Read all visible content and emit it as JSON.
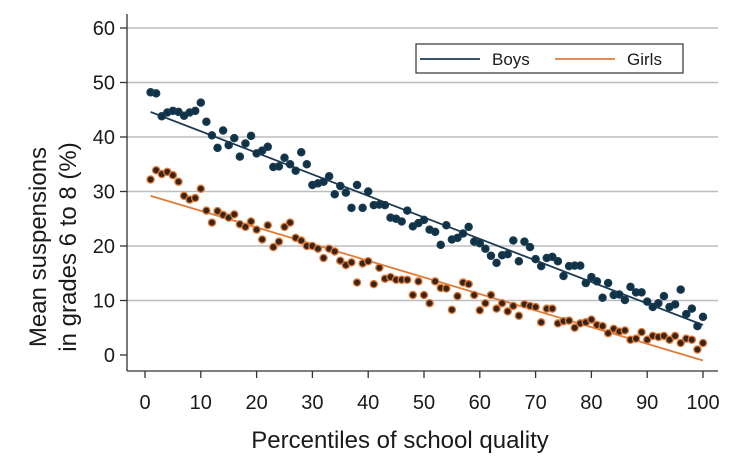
{
  "chart_data": {
    "type": "scatter",
    "xlabel": "Percentiles of school quality",
    "ylabel_lines": [
      "Mean suspensions",
      "in grades 6 to 8 (%)"
    ],
    "xlim": [
      0,
      100
    ],
    "ylim": [
      -2.5,
      62
    ],
    "xticks": [
      0,
      10,
      20,
      30,
      40,
      50,
      60,
      70,
      80,
      90,
      100
    ],
    "yticks": [
      0,
      10,
      20,
      30,
      40,
      50,
      60
    ],
    "grid": "horizontal",
    "legend_position": "top-right",
    "series": [
      {
        "name": "Boys",
        "color": "#1b3a52",
        "fill": "#0f3346",
        "fit": {
          "intercept": 45.0,
          "slope": -0.395
        },
        "points": [
          [
            1,
            48.2
          ],
          [
            2,
            48.0
          ],
          [
            3,
            43.8
          ],
          [
            4,
            44.5
          ],
          [
            5,
            44.8
          ],
          [
            6,
            44.6
          ],
          [
            7,
            43.9
          ],
          [
            8,
            44.5
          ],
          [
            9,
            44.8
          ],
          [
            10,
            46.3
          ],
          [
            11,
            42.8
          ],
          [
            12,
            40.3
          ],
          [
            13,
            38.0
          ],
          [
            14,
            41.2
          ],
          [
            15,
            38.5
          ],
          [
            16,
            39.8
          ],
          [
            17,
            36.4
          ],
          [
            18,
            38.8
          ],
          [
            19,
            40.2
          ],
          [
            20,
            37.0
          ],
          [
            21,
            37.5
          ],
          [
            22,
            38.2
          ],
          [
            23,
            34.5
          ],
          [
            24,
            34.6
          ],
          [
            25,
            36.2
          ],
          [
            26,
            35.0
          ],
          [
            27,
            33.8
          ],
          [
            28,
            37.2
          ],
          [
            29,
            35.0
          ],
          [
            30,
            31.2
          ],
          [
            31,
            31.5
          ],
          [
            32,
            31.8
          ],
          [
            33,
            32.8
          ],
          [
            34,
            29.5
          ],
          [
            35,
            31.0
          ],
          [
            36,
            29.8
          ],
          [
            37,
            27.0
          ],
          [
            38,
            31.2
          ],
          [
            39,
            27.0
          ],
          [
            40,
            30.0
          ],
          [
            41,
            27.5
          ],
          [
            42,
            27.6
          ],
          [
            43,
            27.5
          ],
          [
            44,
            25.2
          ],
          [
            45,
            25.0
          ],
          [
            46,
            24.5
          ],
          [
            47,
            26.5
          ],
          [
            48,
            23.6
          ],
          [
            49,
            24.2
          ],
          [
            50,
            24.8
          ],
          [
            51,
            23.0
          ],
          [
            52,
            22.6
          ],
          [
            53,
            20.2
          ],
          [
            54,
            23.8
          ],
          [
            55,
            21.2
          ],
          [
            56,
            21.5
          ],
          [
            57,
            22.3
          ],
          [
            58,
            23.5
          ],
          [
            59,
            20.8
          ],
          [
            60,
            20.5
          ],
          [
            61,
            19.5
          ],
          [
            62,
            18.2
          ],
          [
            63,
            16.9
          ],
          [
            64,
            18.3
          ],
          [
            65,
            18.5
          ],
          [
            66,
            21.0
          ],
          [
            67,
            17.2
          ],
          [
            68,
            20.8
          ],
          [
            69,
            19.8
          ],
          [
            70,
            17.6
          ],
          [
            71,
            16.3
          ],
          [
            72,
            17.8
          ],
          [
            73,
            18.0
          ],
          [
            74,
            17.2
          ],
          [
            75,
            14.5
          ],
          [
            76,
            16.3
          ],
          [
            77,
            16.4
          ],
          [
            78,
            16.4
          ],
          [
            79,
            13.2
          ],
          [
            80,
            14.3
          ],
          [
            81,
            13.5
          ],
          [
            82,
            10.5
          ],
          [
            83,
            13.2
          ],
          [
            84,
            11.0
          ],
          [
            85,
            11.1
          ],
          [
            86,
            10.1
          ],
          [
            87,
            12.5
          ],
          [
            88,
            11.5
          ],
          [
            89,
            11.5
          ],
          [
            90,
            9.8
          ],
          [
            91,
            8.8
          ],
          [
            92,
            9.5
          ],
          [
            93,
            10.8
          ],
          [
            94,
            8.8
          ],
          [
            95,
            9.3
          ],
          [
            96,
            12.0
          ],
          [
            97,
            7.5
          ],
          [
            98,
            8.5
          ],
          [
            99,
            5.3
          ],
          [
            100,
            7.0
          ]
        ]
      },
      {
        "name": "Girls",
        "color": "#e07b39",
        "fill": "#3a2418",
        "fit": {
          "intercept": 29.5,
          "slope": -0.305
        },
        "points": [
          [
            1,
            32.2
          ],
          [
            2,
            33.9
          ],
          [
            3,
            33.2
          ],
          [
            4,
            33.6
          ],
          [
            5,
            33.0
          ],
          [
            6,
            31.8
          ],
          [
            7,
            29.2
          ],
          [
            8,
            28.5
          ],
          [
            9,
            28.8
          ],
          [
            10,
            30.5
          ],
          [
            11,
            26.5
          ],
          [
            12,
            24.3
          ],
          [
            13,
            26.4
          ],
          [
            14,
            25.7
          ],
          [
            15,
            25.2
          ],
          [
            16,
            25.8
          ],
          [
            17,
            24.0
          ],
          [
            18,
            23.5
          ],
          [
            19,
            24.5
          ],
          [
            20,
            23.0
          ],
          [
            21,
            21.2
          ],
          [
            22,
            23.8
          ],
          [
            23,
            19.8
          ],
          [
            24,
            20.8
          ],
          [
            25,
            23.5
          ],
          [
            26,
            24.3
          ],
          [
            27,
            21.5
          ],
          [
            28,
            21.0
          ],
          [
            29,
            20.0
          ],
          [
            30,
            20.0
          ],
          [
            31,
            19.5
          ],
          [
            32,
            17.8
          ],
          [
            33,
            19.5
          ],
          [
            34,
            19.0
          ],
          [
            35,
            17.3
          ],
          [
            36,
            16.5
          ],
          [
            37,
            17.0
          ],
          [
            38,
            13.3
          ],
          [
            39,
            16.8
          ],
          [
            40,
            17.2
          ],
          [
            41,
            13.0
          ],
          [
            42,
            16.0
          ],
          [
            43,
            14.0
          ],
          [
            44,
            14.3
          ],
          [
            45,
            13.8
          ],
          [
            46,
            13.8
          ],
          [
            47,
            13.8
          ],
          [
            48,
            11.0
          ],
          [
            49,
            13.5
          ],
          [
            50,
            11.0
          ],
          [
            51,
            9.5
          ],
          [
            52,
            13.5
          ],
          [
            53,
            12.3
          ],
          [
            54,
            12.2
          ],
          [
            55,
            8.3
          ],
          [
            56,
            10.8
          ],
          [
            57,
            13.3
          ],
          [
            58,
            13.0
          ],
          [
            59,
            11.0
          ],
          [
            60,
            8.2
          ],
          [
            61,
            9.5
          ],
          [
            62,
            11.0
          ],
          [
            63,
            8.5
          ],
          [
            64,
            9.5
          ],
          [
            65,
            8.0
          ],
          [
            66,
            9.0
          ],
          [
            67,
            7.2
          ],
          [
            68,
            9.3
          ],
          [
            69,
            9.0
          ],
          [
            70,
            8.8
          ],
          [
            71,
            6.0
          ],
          [
            72,
            8.5
          ],
          [
            73,
            8.5
          ],
          [
            74,
            5.8
          ],
          [
            75,
            6.2
          ],
          [
            76,
            6.3
          ],
          [
            77,
            5.0
          ],
          [
            78,
            5.8
          ],
          [
            79,
            6.0
          ],
          [
            80,
            6.5
          ],
          [
            81,
            5.5
          ],
          [
            82,
            5.3
          ],
          [
            83,
            4.0
          ],
          [
            84,
            4.8
          ],
          [
            85,
            4.3
          ],
          [
            86,
            4.5
          ],
          [
            87,
            2.8
          ],
          [
            88,
            3.0
          ],
          [
            89,
            4.2
          ],
          [
            90,
            2.8
          ],
          [
            91,
            3.5
          ],
          [
            92,
            3.3
          ],
          [
            93,
            3.5
          ],
          [
            94,
            2.8
          ],
          [
            95,
            3.5
          ],
          [
            96,
            2.2
          ],
          [
            97,
            3.0
          ],
          [
            98,
            2.8
          ],
          [
            99,
            1.0
          ],
          [
            100,
            2.2
          ]
        ]
      }
    ]
  }
}
